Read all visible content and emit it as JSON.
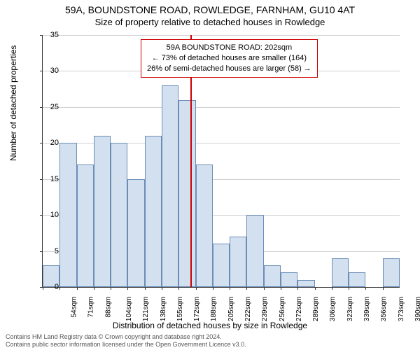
{
  "titles": {
    "main": "59A, BOUNDSTONE ROAD, ROWLEDGE, FARNHAM, GU10 4AT",
    "sub": "Size of property relative to detached houses in Rowledge"
  },
  "axes": {
    "ylabel": "Number of detached properties",
    "xlabel": "Distribution of detached houses by size in Rowledge",
    "ylim": [
      0,
      35
    ],
    "yticks": [
      0,
      5,
      10,
      15,
      20,
      25,
      30,
      35
    ],
    "label_fontsize": 12,
    "tick_fontsize": 11
  },
  "histogram": {
    "type": "histogram",
    "categories": [
      "54sqm",
      "71sqm",
      "88sqm",
      "104sqm",
      "121sqm",
      "138sqm",
      "155sqm",
      "172sqm",
      "188sqm",
      "205sqm",
      "222sqm",
      "239sqm",
      "256sqm",
      "272sqm",
      "289sqm",
      "306sqm",
      "323sqm",
      "339sqm",
      "356sqm",
      "373sqm",
      "390sqm"
    ],
    "values": [
      3,
      20,
      17,
      21,
      20,
      15,
      21,
      28,
      26,
      17,
      6,
      7,
      10,
      3,
      2,
      1,
      0,
      4,
      2,
      0,
      4
    ],
    "bar_fill": "#d3e0f0",
    "bar_border": "#6b8db5",
    "grid_color": "#d0d0d0",
    "background_color": "#ffffff"
  },
  "marker": {
    "position_sqm": 202,
    "color": "#cc0000",
    "line_width": 2
  },
  "annotation": {
    "lines": [
      "59A BOUNDSTONE ROAD: 202sqm",
      "← 73% of detached houses are smaller (164)",
      "26% of semi-detached houses are larger (58) →"
    ],
    "border_color": "#cc0000",
    "background": "#ffffff",
    "fontsize": 11
  },
  "footer": {
    "line1": "Contains HM Land Registry data © Crown copyright and database right 2024.",
    "line2": "Contains public sector information licensed under the Open Government Licence v3.0."
  }
}
